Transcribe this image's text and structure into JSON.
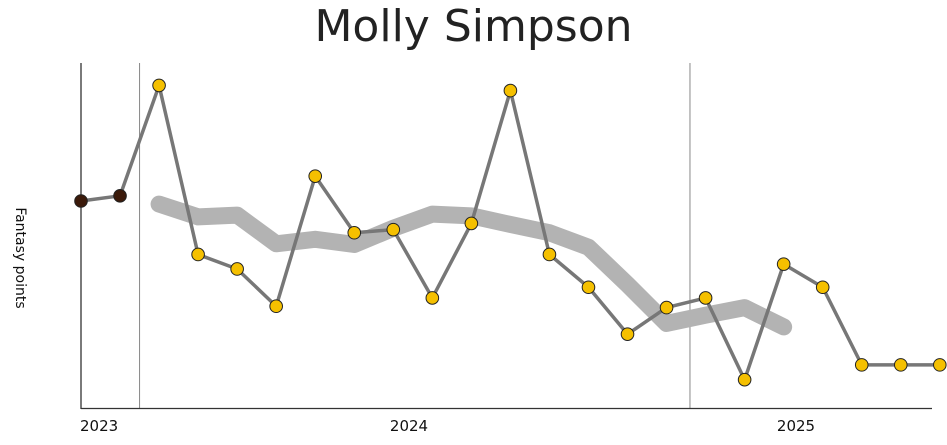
{
  "chart_data": {
    "type": "line",
    "title": "Molly Simpson",
    "xlabel": "",
    "ylabel": "Fantasy points",
    "x_ticks": [
      "2023",
      "2024",
      "2025"
    ],
    "xlim": [
      0,
      21.8
    ],
    "ylim": [
      0,
      100
    ],
    "grid": false,
    "season_dividers": [
      1.5,
      15.6
    ],
    "series": [
      {
        "style": "weekly points",
        "x": [
          0,
          1,
          2,
          3,
          4,
          5,
          6,
          7,
          8,
          9,
          10,
          11,
          12,
          13,
          14,
          15,
          16,
          17,
          18,
          19,
          20,
          21,
          22
        ],
        "y": [
          60,
          61.5,
          93.5,
          44.5,
          40.3,
          29.5,
          67.2,
          50.8,
          51.7,
          31.9,
          53.5,
          92,
          44.5,
          35,
          21.4,
          29.1,
          31.9,
          8.2,
          41.7,
          35,
          12.5,
          12.5,
          12.5
        ],
        "point_colors": [
          "#3b1a0a",
          "#3b1a0a",
          "#f5c000",
          "#f5c000",
          "#f5c000",
          "#f5c000",
          "#f5c000",
          "#f5c000",
          "#f5c000",
          "#f5c000",
          "#f5c000",
          "#f5c000",
          "#f5c000",
          "#f5c000",
          "#f5c000",
          "#f5c000",
          "#f5c000",
          "#f5c000",
          "#f5c000",
          "#f5c000",
          "#f5c000",
          "#f5c000",
          "#f5c000"
        ]
      },
      {
        "style": "trend",
        "x": [
          2,
          3,
          4,
          5,
          6,
          7,
          8,
          9,
          10,
          11,
          12,
          13,
          14,
          15,
          16,
          17,
          18
        ],
        "y": [
          59.1,
          55.4,
          55.9,
          47.6,
          48.9,
          47.4,
          52.1,
          56.2,
          55.7,
          53.2,
          50.8,
          46.6,
          35.8,
          24.5,
          26.9,
          29.1,
          23.5
        ]
      }
    ],
    "colors": {
      "line": "#777777",
      "trend": "#b3b3b3",
      "marker": "#f5c000",
      "marker_dark": "#3b1a0a",
      "axis": "#333333",
      "divider": "#888888"
    }
  }
}
